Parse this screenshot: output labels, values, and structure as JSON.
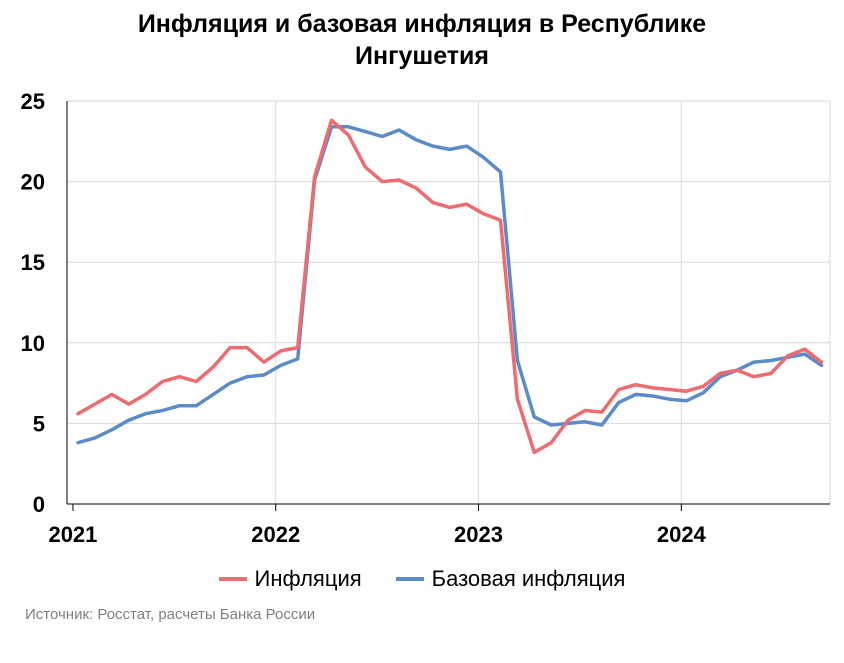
{
  "title_line1": "Инфляция и базовая инфляция в Республике",
  "title_line2": "Ингушетия",
  "source": "Источник: Росстат, расчеты Банка России",
  "colors": {
    "inflation": "#ee6b6e",
    "core": "#5b8bc8",
    "grid": "#d9d9d9",
    "axis": "#000000"
  },
  "chart_data": {
    "type": "line",
    "x_start": "2021-01",
    "x_ticks": [
      "2021",
      "2022",
      "2023",
      "2024"
    ],
    "ylim": [
      0,
      25
    ],
    "y_ticks": [
      0,
      5,
      10,
      15,
      20,
      25
    ],
    "grid": true,
    "legend": "bottom",
    "series": [
      {
        "name": "Инфляция",
        "color": "#ee6b6e",
        "values": [
          5.6,
          6.2,
          6.8,
          6.2,
          6.8,
          7.6,
          7.9,
          7.6,
          8.5,
          9.7,
          9.7,
          8.8,
          9.5,
          9.7,
          20.3,
          23.8,
          22.9,
          20.9,
          20.0,
          20.1,
          19.6,
          18.7,
          18.4,
          18.6,
          18.0,
          17.6,
          6.5,
          3.2,
          3.8,
          5.2,
          5.8,
          5.7,
          7.1,
          7.4,
          7.2,
          7.1,
          7.0,
          7.3,
          8.1,
          8.3,
          7.9,
          8.1,
          9.2,
          9.6,
          8.8
        ]
      },
      {
        "name": "Базовая инфляция",
        "color": "#5b8bc8",
        "values": [
          3.8,
          4.1,
          4.6,
          5.2,
          5.6,
          5.8,
          6.1,
          6.1,
          6.8,
          7.5,
          7.9,
          8.0,
          8.6,
          9.0,
          20.1,
          23.4,
          23.4,
          23.1,
          22.8,
          23.2,
          22.6,
          22.2,
          22.0,
          22.2,
          21.5,
          20.6,
          8.9,
          5.4,
          4.9,
          5.0,
          5.1,
          4.9,
          6.3,
          6.8,
          6.7,
          6.5,
          6.4,
          6.9,
          7.9,
          8.3,
          8.8,
          8.9,
          9.1,
          9.3,
          8.6
        ]
      }
    ]
  }
}
